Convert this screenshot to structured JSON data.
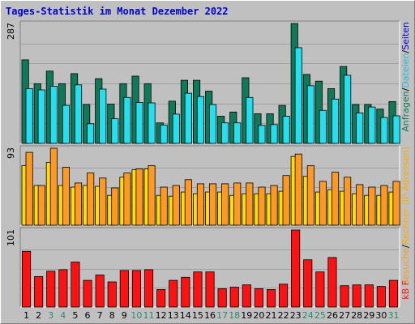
{
  "title": "Tages-Statistik im Monat Dezember 2022",
  "colors": {
    "background": "#c0c0c0",
    "panel": "#c0c0c0",
    "gridline": "#a0a0a0",
    "title": "#0000cc",
    "anfragen": "#0f7a5a",
    "dateien": "#22e0f0",
    "rechner": "#ffdd00",
    "besuche": "#ff9922",
    "kbf": "#ff1111",
    "weekday_label": "#000000",
    "weekend_label": "#2a8a6a"
  },
  "right_labels": {
    "top": [
      {
        "text": "Anfragen",
        "color": "#0f7a5a"
      },
      {
        "text": "/",
        "color": "#000000"
      },
      {
        "text": "Dateien",
        "color": "#22bbdd"
      },
      {
        "text": "/",
        "color": "#000000"
      },
      {
        "text": "Seiten",
        "color": "#0000cc"
      }
    ],
    "middle": [
      {
        "text": "Besuche",
        "color": "#ff9922"
      },
      {
        "text": "/",
        "color": "#000000"
      },
      {
        "text": "Rechner (IP-Adressen)",
        "color": "#ffaa00"
      }
    ],
    "bottom": [
      {
        "text": "kB F",
        "color": "#ff1111"
      }
    ]
  },
  "chart_data": [
    {
      "type": "bar",
      "panel": "top",
      "max_label": "287",
      "ylim": [
        0,
        287
      ],
      "categories": [
        "1",
        "2",
        "3",
        "4",
        "5",
        "6",
        "7",
        "8",
        "9",
        "10",
        "11",
        "12",
        "13",
        "14",
        "15",
        "16",
        "17",
        "18",
        "19",
        "20",
        "21",
        "22",
        "23",
        "24",
        "25",
        "26",
        "27",
        "28",
        "29",
        "30",
        "31"
      ],
      "weekend_days": [
        "3",
        "4",
        "10",
        "11",
        "17",
        "18",
        "24",
        "25",
        "31"
      ],
      "series": [
        {
          "name": "Anfragen",
          "color": "#0f7a5a",
          "values": [
            200,
            143,
            173,
            143,
            167,
            93,
            155,
            94,
            143,
            161,
            143,
            49,
            101,
            151,
            151,
            125,
            65,
            75,
            157,
            71,
            71,
            91,
            287,
            165,
            149,
            131,
            184,
            93,
            93,
            82,
            100
          ]
        },
        {
          "name": "Dateien",
          "color": "#22e0f0",
          "values": [
            131,
            128,
            137,
            91,
            140,
            47,
            130,
            59,
            110,
            98,
            97,
            44,
            70,
            120,
            112,
            93,
            49,
            49,
            110,
            43,
            45,
            65,
            229,
            138,
            79,
            106,
            163,
            73,
            87,
            62,
            66
          ]
        }
      ]
    },
    {
      "type": "bar",
      "panel": "middle",
      "max_label": "93",
      "ylim": [
        0,
        93
      ],
      "categories": [
        "1",
        "2",
        "3",
        "4",
        "5",
        "6",
        "7",
        "8",
        "9",
        "10",
        "11",
        "12",
        "13",
        "14",
        "15",
        "16",
        "17",
        "18",
        "19",
        "20",
        "21",
        "22",
        "23",
        "24",
        "25",
        "26",
        "27",
        "28",
        "29",
        "30",
        "31"
      ],
      "series": [
        {
          "name": "Rechner (IP-Adressen)",
          "color": "#ffdd00",
          "values": [
            72,
            48,
            76,
            48,
            46,
            48,
            47,
            36,
            58,
            67,
            68,
            36,
            35,
            40,
            38,
            40,
            40,
            36,
            38,
            38,
            38,
            41,
            83,
            59,
            40,
            43,
            41,
            38,
            36,
            36,
            40
          ]
        },
        {
          "name": "Besuche",
          "color": "#ff9922",
          "values": [
            88,
            48,
            93,
            70,
            51,
            63,
            57,
            45,
            63,
            68,
            72,
            46,
            48,
            55,
            50,
            50,
            50,
            51,
            51,
            46,
            48,
            60,
            86,
            72,
            53,
            64,
            58,
            49,
            46,
            48,
            53
          ]
        }
      ]
    },
    {
      "type": "bar",
      "panel": "bottom",
      "max_label": "101",
      "ylim": [
        0,
        101
      ],
      "categories": [
        "1",
        "2",
        "3",
        "4",
        "5",
        "6",
        "7",
        "8",
        "9",
        "10",
        "11",
        "12",
        "13",
        "14",
        "15",
        "16",
        "17",
        "18",
        "19",
        "20",
        "21",
        "22",
        "23",
        "24",
        "25",
        "26",
        "27",
        "28",
        "29",
        "30",
        "31"
      ],
      "series": [
        {
          "name": "kB F",
          "color": "#ff1111",
          "values": [
            73,
            40,
            47,
            49,
            59,
            35,
            42,
            33,
            48,
            48,
            49,
            23,
            35,
            39,
            46,
            46,
            24,
            26,
            29,
            24,
            23,
            30,
            101,
            62,
            46,
            65,
            28,
            29,
            29,
            27,
            35
          ]
        }
      ]
    }
  ]
}
